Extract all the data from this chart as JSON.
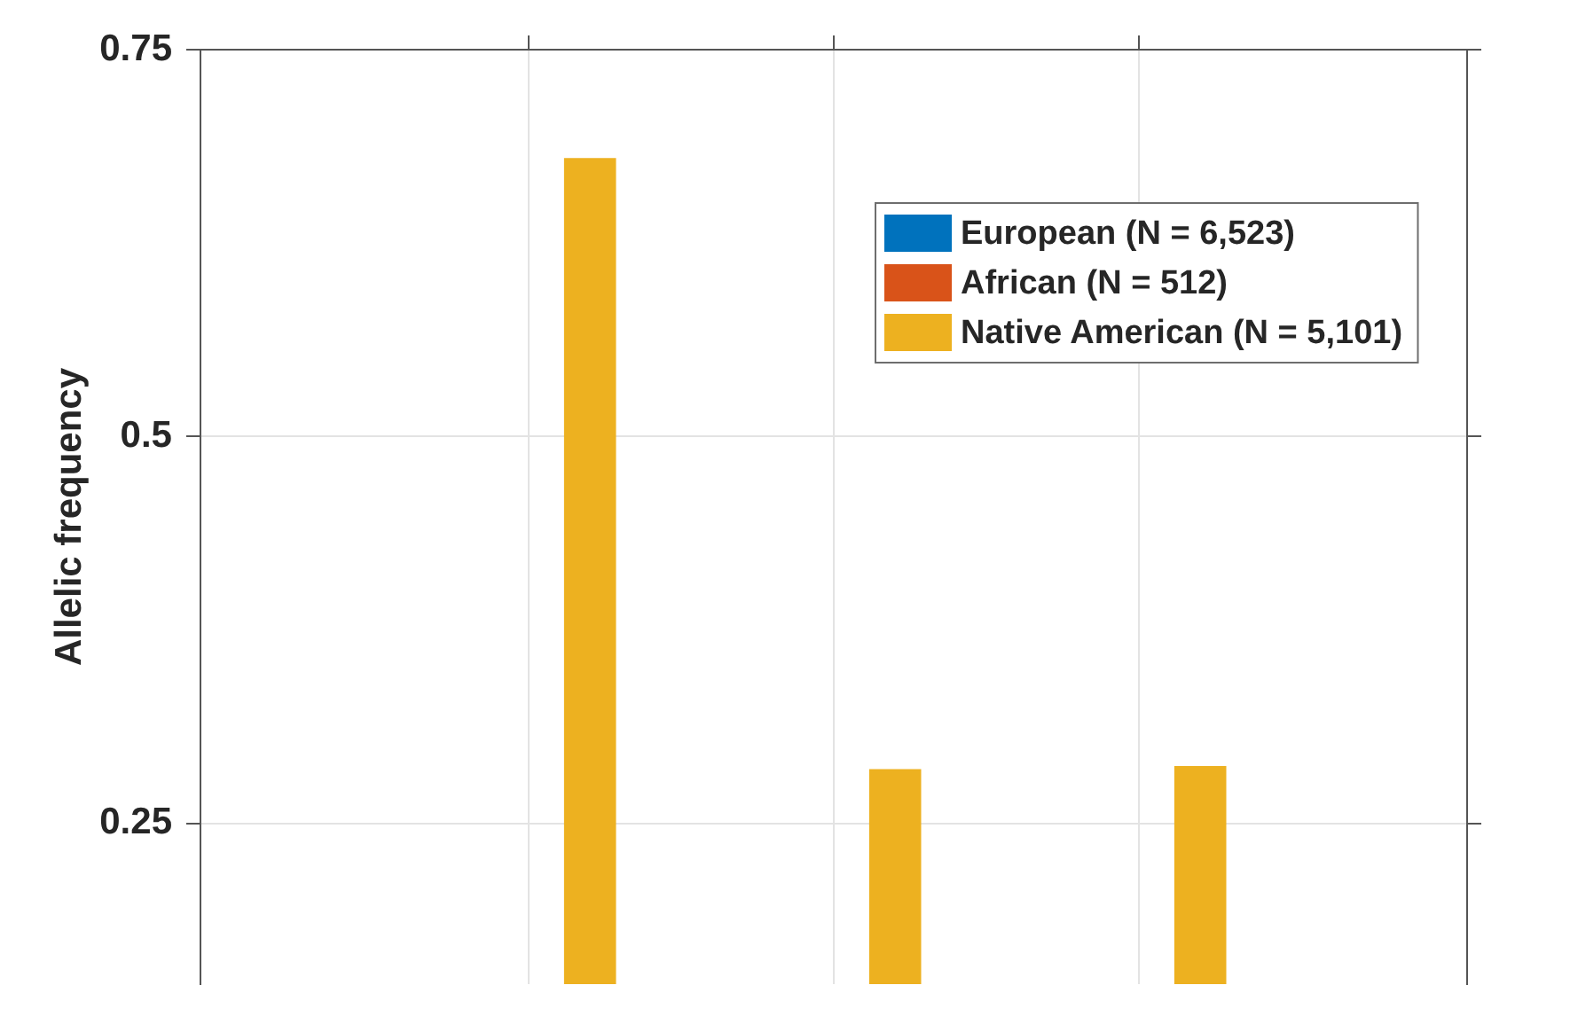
{
  "chart_data": {
    "type": "bar",
    "ylabel": "Allelic frequency",
    "categories": [
      null,
      null,
      null
    ],
    "series": [
      {
        "name": "European (N = 6,523)",
        "color": "#0072bd",
        "values": [
          null,
          null,
          null
        ]
      },
      {
        "name": "African (N = 512)",
        "color": "#d95319",
        "values": [
          null,
          null,
          null
        ]
      },
      {
        "name": "Native American (N = 5,101)",
        "color": "#edb120",
        "values": [
          0.68,
          0.285,
          0.287
        ]
      }
    ],
    "ylim": [
      0.146,
      0.75
    ],
    "yticks": [
      0.25,
      0.5,
      0.75
    ],
    "grid": true,
    "legend": "top right",
    "tick_labels": "y"
  }
}
